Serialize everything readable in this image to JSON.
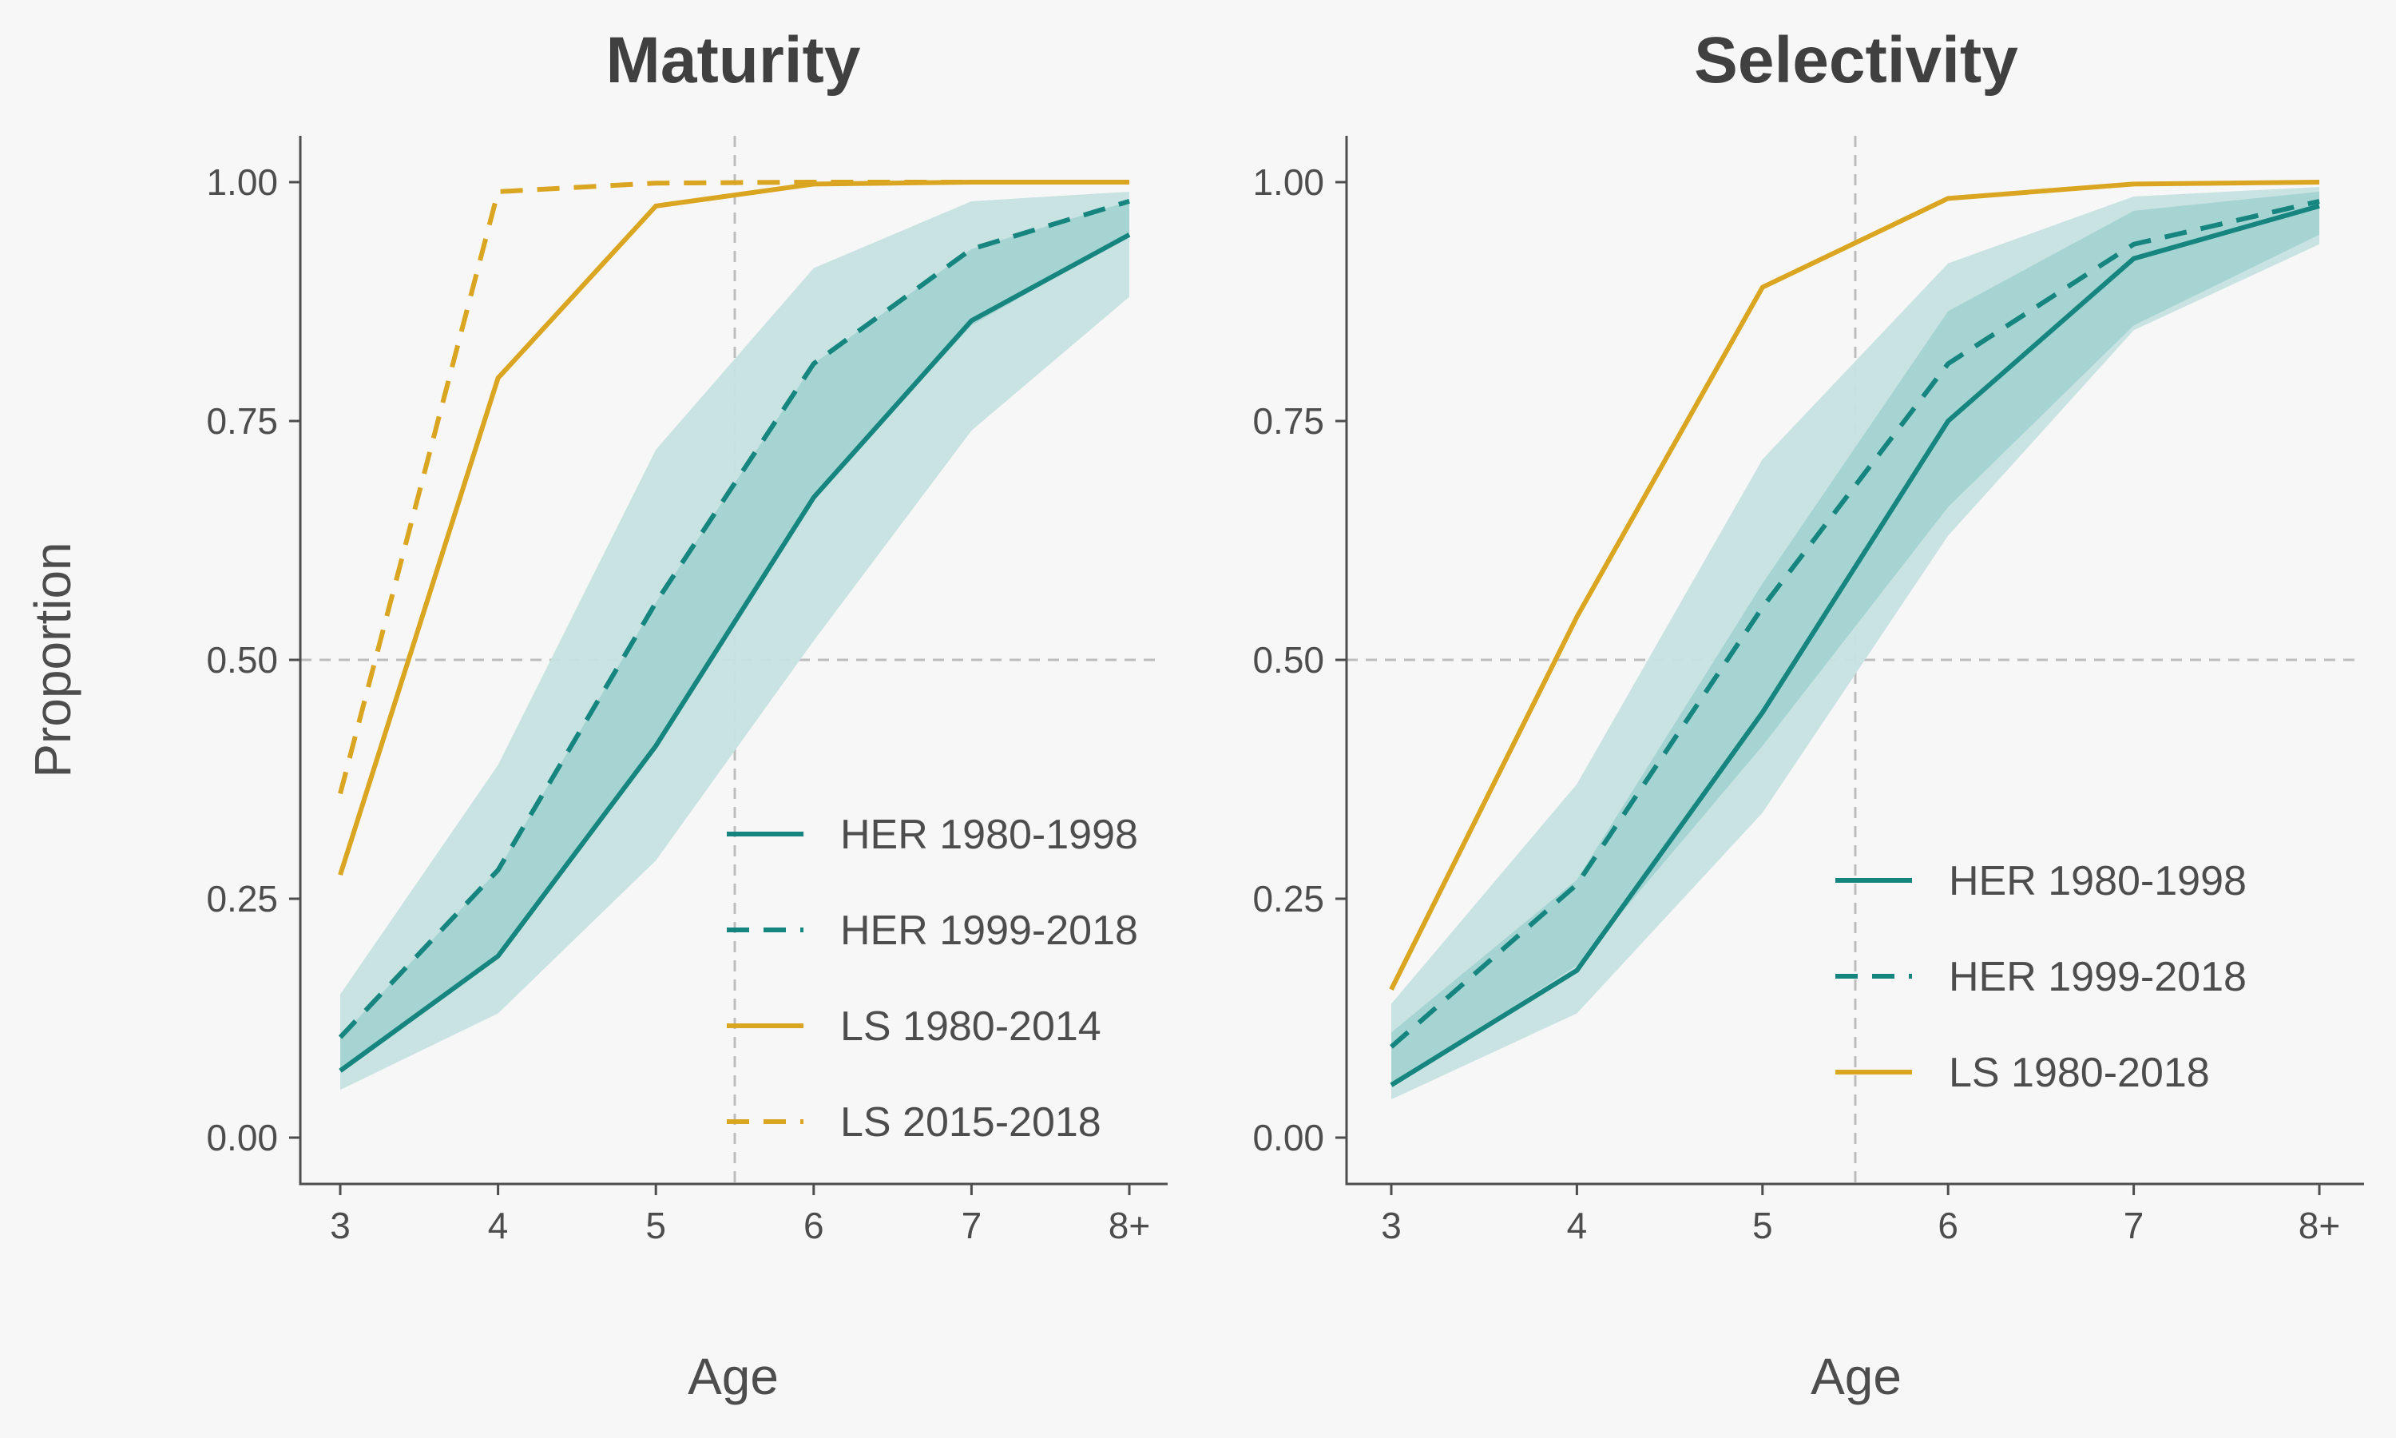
{
  "colors": {
    "teal": "#17857f",
    "gold": "#daa520",
    "band_outer": "#c6e2e1",
    "band_inner": "#9fd1cf",
    "background": "#f7f7f7"
  },
  "chart_data": [
    {
      "type": "line",
      "title": "Maturity",
      "xlabel": "Age",
      "ylabel": "Proportion",
      "categories": [
        "3",
        "4",
        "5",
        "6",
        "7",
        "8+"
      ],
      "ylim": [
        -0.05,
        1.05
      ],
      "yticks": [
        "0.00",
        "0.25",
        "0.50",
        "0.75",
        "1.00"
      ],
      "grid": false,
      "legend_position": "bottom-right",
      "reference_lines": {
        "y": 0.5,
        "x": 5.5
      },
      "bands": {
        "outer": {
          "lower": [
            0.05,
            0.13,
            0.29,
            0.52,
            0.74,
            0.88
          ],
          "upper": [
            0.15,
            0.39,
            0.72,
            0.91,
            0.98,
            0.99
          ]
        },
        "inner": {
          "lower": [
            0.07,
            0.19,
            0.41,
            0.67,
            0.85,
            0.945
          ],
          "upper": [
            0.105,
            0.28,
            0.56,
            0.81,
            0.93,
            0.98
          ]
        }
      },
      "series": [
        {
          "name": "HER 1980-1998",
          "color": "teal",
          "dash": false,
          "values": [
            0.07,
            0.19,
            0.41,
            0.67,
            0.855,
            0.945
          ]
        },
        {
          "name": "HER 1999-2018",
          "color": "teal",
          "dash": true,
          "values": [
            0.105,
            0.28,
            0.56,
            0.81,
            0.93,
            0.98
          ]
        },
        {
          "name": "LS 1980-2014",
          "color": "gold",
          "dash": false,
          "values": [
            0.275,
            0.795,
            0.975,
            0.998,
            1.0,
            1.0
          ]
        },
        {
          "name": "LS 2015-2018",
          "color": "gold",
          "dash": true,
          "values": [
            0.36,
            0.99,
            0.999,
            1.0,
            1.0,
            1.0
          ]
        }
      ]
    },
    {
      "type": "line",
      "title": "Selectivity",
      "xlabel": "Age",
      "categories": [
        "3",
        "4",
        "5",
        "6",
        "7",
        "8+"
      ],
      "ylim": [
        -0.05,
        1.05
      ],
      "yticks": [
        "0.00",
        "0.25",
        "0.50",
        "0.75",
        "1.00"
      ],
      "grid": false,
      "legend_position": "bottom-right",
      "reference_lines": {
        "y": 0.5,
        "x": 5.5
      },
      "bands": {
        "outer": {
          "lower": [
            0.04,
            0.13,
            0.34,
            0.63,
            0.845,
            0.935
          ],
          "upper": [
            0.14,
            0.37,
            0.71,
            0.915,
            0.985,
            0.995
          ]
        },
        "inner": {
          "lower": [
            0.055,
            0.18,
            0.41,
            0.66,
            0.85,
            0.945
          ],
          "upper": [
            0.11,
            0.27,
            0.58,
            0.865,
            0.97,
            0.99
          ]
        }
      },
      "series": [
        {
          "name": "HER 1980-1998",
          "color": "teal",
          "dash": false,
          "values": [
            0.055,
            0.175,
            0.445,
            0.75,
            0.92,
            0.975
          ]
        },
        {
          "name": "HER 1999-2018",
          "color": "teal",
          "dash": true,
          "values": [
            0.095,
            0.265,
            0.555,
            0.81,
            0.935,
            0.98
          ]
        },
        {
          "name": "LS 1980-2018",
          "color": "gold",
          "dash": false,
          "values": [
            0.155,
            0.545,
            0.89,
            0.983,
            0.998,
            1.0
          ]
        }
      ]
    }
  ]
}
